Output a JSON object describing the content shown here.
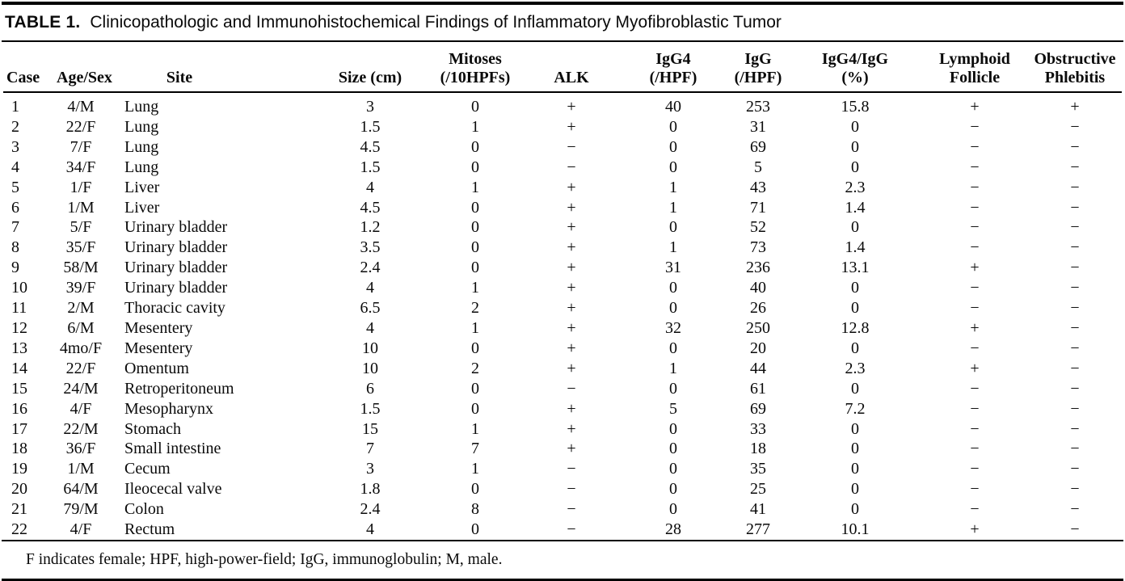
{
  "page": {
    "title_label": "TABLE 1.",
    "title_text": "Clinicopathologic and Immunohistochemical Findings of Inflammatory Myofibroblastic Tumor"
  },
  "colors": {
    "background": "#ffffff",
    "text": "#0a0a0a",
    "rule": "#000000"
  },
  "table": {
    "columns": [
      {
        "line1": "",
        "line2": "Case"
      },
      {
        "line1": "",
        "line2": "Age/Sex"
      },
      {
        "line1": "",
        "line2": "Site"
      },
      {
        "line1": "",
        "line2": "Size (cm)"
      },
      {
        "line1": "Mitoses",
        "line2": "(/10HPFs)"
      },
      {
        "line1": "",
        "line2": "ALK"
      },
      {
        "line1": "IgG4",
        "line2": "(/HPF)"
      },
      {
        "line1": "IgG",
        "line2": "(/HPF)"
      },
      {
        "line1": "IgG4/IgG",
        "line2": "(%)"
      },
      {
        "line1": "Lymphoid",
        "line2": "Follicle"
      },
      {
        "line1": "Obstructive",
        "line2": "Phlebitis"
      }
    ],
    "rows": [
      [
        "1",
        "4/M",
        "Lung",
        "3",
        "0",
        "+",
        "40",
        "253",
        "15.8",
        "+",
        "+"
      ],
      [
        "2",
        "22/F",
        "Lung",
        "1.5",
        "1",
        "+",
        "0",
        "31",
        "0",
        "−",
        "−"
      ],
      [
        "3",
        "7/F",
        "Lung",
        "4.5",
        "0",
        "−",
        "0",
        "69",
        "0",
        "−",
        "−"
      ],
      [
        "4",
        "34/F",
        "Lung",
        "1.5",
        "0",
        "−",
        "0",
        "5",
        "0",
        "−",
        "−"
      ],
      [
        "5",
        "1/F",
        "Liver",
        "4",
        "1",
        "+",
        "1",
        "43",
        "2.3",
        "−",
        "−"
      ],
      [
        "6",
        "1/M",
        "Liver",
        "4.5",
        "0",
        "+",
        "1",
        "71",
        "1.4",
        "−",
        "−"
      ],
      [
        "7",
        "5/F",
        "Urinary bladder",
        "1.2",
        "0",
        "+",
        "0",
        "52",
        "0",
        "−",
        "−"
      ],
      [
        "8",
        "35/F",
        "Urinary bladder",
        "3.5",
        "0",
        "+",
        "1",
        "73",
        "1.4",
        "−",
        "−"
      ],
      [
        "9",
        "58/M",
        "Urinary bladder",
        "2.4",
        "0",
        "+",
        "31",
        "236",
        "13.1",
        "+",
        "−"
      ],
      [
        "10",
        "39/F",
        "Urinary bladder",
        "4",
        "1",
        "+",
        "0",
        "40",
        "0",
        "−",
        "−"
      ],
      [
        "11",
        "2/M",
        "Thoracic cavity",
        "6.5",
        "2",
        "+",
        "0",
        "26",
        "0",
        "−",
        "−"
      ],
      [
        "12",
        "6/M",
        "Mesentery",
        "4",
        "1",
        "+",
        "32",
        "250",
        "12.8",
        "+",
        "−"
      ],
      [
        "13",
        "4mo/F",
        "Mesentery",
        "10",
        "0",
        "+",
        "0",
        "20",
        "0",
        "−",
        "−"
      ],
      [
        "14",
        "22/F",
        "Omentum",
        "10",
        "2",
        "+",
        "1",
        "44",
        "2.3",
        "+",
        "−"
      ],
      [
        "15",
        "24/M",
        "Retroperitoneum",
        "6",
        "0",
        "−",
        "0",
        "61",
        "0",
        "−",
        "−"
      ],
      [
        "16",
        "4/F",
        "Mesopharynx",
        "1.5",
        "0",
        "+",
        "5",
        "69",
        "7.2",
        "−",
        "−"
      ],
      [
        "17",
        "22/M",
        "Stomach",
        "15",
        "1",
        "+",
        "0",
        "33",
        "0",
        "−",
        "−"
      ],
      [
        "18",
        "36/F",
        "Small intestine",
        "7",
        "7",
        "+",
        "0",
        "18",
        "0",
        "−",
        "−"
      ],
      [
        "19",
        "1/M",
        "Cecum",
        "3",
        "1",
        "−",
        "0",
        "35",
        "0",
        "−",
        "−"
      ],
      [
        "20",
        "64/M",
        "Ileocecal valve",
        "1.8",
        "0",
        "−",
        "0",
        "25",
        "0",
        "−",
        "−"
      ],
      [
        "21",
        "79/M",
        "Colon",
        "2.4",
        "8",
        "−",
        "0",
        "41",
        "0",
        "−",
        "−"
      ],
      [
        "22",
        "4/F",
        "Rectum",
        "4",
        "0",
        "−",
        "28",
        "277",
        "10.1",
        "+",
        "−"
      ]
    ],
    "footnote": "F indicates female; HPF, high-power-field; IgG, immunoglobulin; M, male."
  }
}
